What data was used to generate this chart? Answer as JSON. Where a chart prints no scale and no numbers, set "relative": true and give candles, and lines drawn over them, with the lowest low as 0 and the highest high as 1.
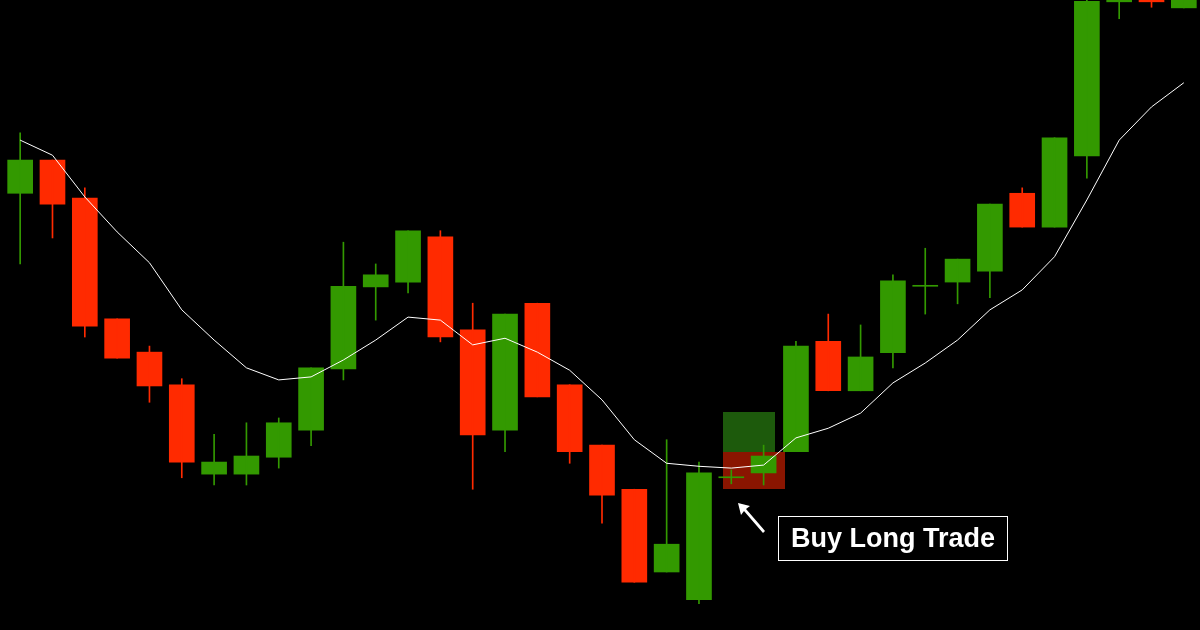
{
  "chart_data": {
    "type": "candlestick",
    "relative": true,
    "marker": "none",
    "categories": [
      null,
      null,
      null,
      null,
      null,
      null,
      null,
      null,
      null,
      null,
      null,
      null,
      null,
      null,
      null,
      null,
      null,
      null,
      null,
      null,
      null,
      null,
      null,
      null,
      null,
      null,
      null,
      null,
      null,
      null,
      null,
      null,
      null,
      null,
      null,
      null,
      null
    ],
    "ohlc": [
      [
        0.68,
        0.78,
        0.563,
        0.735
      ],
      [
        0.735,
        0.735,
        0.606,
        0.662
      ],
      [
        0.672,
        0.689,
        0.442,
        0.46
      ],
      [
        0.472,
        0.472,
        0.407,
        0.407
      ],
      [
        0.417,
        0.427,
        0.334,
        0.361
      ],
      [
        0.363,
        0.373,
        0.209,
        0.235
      ],
      [
        0.215,
        0.281,
        0.197,
        0.235
      ],
      [
        0.215,
        0.3,
        0.197,
        0.245
      ],
      [
        0.243,
        0.308,
        0.225,
        0.3
      ],
      [
        0.288,
        0.391,
        0.262,
        0.391
      ],
      [
        0.389,
        0.599,
        0.371,
        0.526
      ],
      [
        0.525,
        0.563,
        0.47,
        0.545
      ],
      [
        0.533,
        0.618,
        0.515,
        0.618
      ],
      [
        0.608,
        0.618,
        0.434,
        0.442
      ],
      [
        0.454,
        0.498,
        0.19,
        0.28
      ],
      [
        0.288,
        0.48,
        0.252,
        0.48
      ],
      [
        0.498,
        0.498,
        0.343,
        0.343
      ],
      [
        0.363,
        0.363,
        0.233,
        0.252
      ],
      [
        0.263,
        0.263,
        0.134,
        0.18
      ],
      [
        0.19,
        0.19,
        0.036,
        0.036
      ],
      [
        0.053,
        0.272,
        0.053,
        0.099
      ],
      [
        0.007,
        0.235,
        0,
        0.217
      ],
      [
        0.209,
        0.222,
        0.199,
        0.209
      ],
      [
        0.217,
        0.263,
        0.197,
        0.245
      ],
      [
        0.252,
        0.435,
        0.252,
        0.427
      ],
      [
        0.435,
        0.48,
        0.353,
        0.353
      ],
      [
        0.353,
        0.462,
        0.353,
        0.409
      ],
      [
        0.416,
        0.545,
        0.391,
        0.535
      ],
      [
        0.526,
        0.589,
        0.48,
        0.526
      ],
      [
        0.533,
        0.571,
        0.497,
        0.571
      ],
      [
        0.551,
        0.662,
        0.507,
        0.662
      ],
      [
        0.68,
        0.689,
        0.624,
        0.624
      ],
      [
        0.624,
        0.772,
        0.624,
        0.772
      ],
      [
        0.742,
        1,
        0.705,
        0.998
      ],
      [
        0.997,
        1,
        0.969,
        1
      ],
      [
        1,
        1,
        0.988,
        0.997
      ],
      [
        0.987,
        1,
        0.987,
        1
      ]
    ],
    "colors": [
      "#339900",
      "#ff2a00",
      "#ff2a00",
      "#ff2a00",
      "#ff2a00",
      "#ff2a00",
      "#339900",
      "#339900",
      "#339900",
      "#339900",
      "#339900",
      "#339900",
      "#339900",
      "#ff2a00",
      "#ff2a00",
      "#339900",
      "#ff2a00",
      "#ff2a00",
      "#ff2a00",
      "#ff2a00",
      "#339900",
      "#339900",
      "#339900",
      "#339900",
      "#339900",
      "#ff2a00",
      "#339900",
      "#339900",
      "#339900",
      "#339900",
      "#339900",
      "#ff2a00",
      "#339900",
      "#339900",
      "#339900",
      "#ff2a00",
      "#339900"
    ],
    "series": [
      {
        "type": "line",
        "color": "#ffffff",
        "values": [
          0.768,
          0.743,
          0.674,
          0.616,
          0.565,
          0.487,
          0.437,
          0.391,
          0.371,
          0.376,
          0.404,
          0.437,
          0.475,
          0.47,
          0.429,
          0.44,
          0.417,
          0.387,
          0.338,
          0.272,
          0.233,
          0.228,
          0.225,
          0.23,
          0.275,
          0.291,
          0.316,
          0.366,
          0.399,
          0.437,
          0.487,
          0.52,
          0.575,
          0.669,
          0.768,
          0.823,
          0.863
        ]
      }
    ],
    "annotations": [
      "Buy Long Trade"
    ]
  }
}
